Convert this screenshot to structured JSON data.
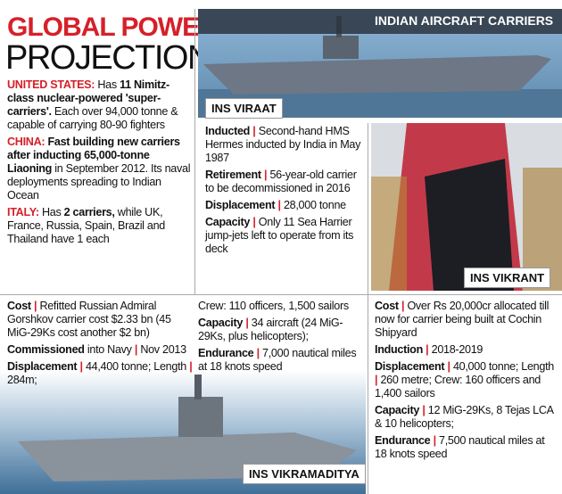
{
  "title": {
    "line1": "GLOBAL POWER",
    "line2": "PROJECTION"
  },
  "banner": "INDIAN AIRCRAFT CARRIERS",
  "left": [
    [
      {
        "red": "UNITED STATES:"
      },
      {
        "plain": "Has"
      },
      {
        "bold": "11 Nimitz-class nuclear-powered 'super-carriers'."
      },
      {
        "plain": "Each over 94,000 tonne & capable of carrying 80-90 fighters"
      }
    ],
    [
      {
        "red": "CHINA:"
      },
      {
        "bold": "Fast building new carriers after inducting 65,000-tonne Liaoning"
      },
      {
        "plain": "in September 2012. Its naval deployments spreading to Indian Ocean"
      }
    ],
    [
      {
        "red": "ITALY:"
      },
      {
        "plain": "Has"
      },
      {
        "bold": "2 carriers,"
      },
      {
        "plain": "while UK, France, Russia, Spain, Brazil and Thailand have 1 each"
      }
    ]
  ],
  "viraat": {
    "caption": "INS VIRAAT",
    "facts": [
      [
        {
          "bold": "Inducted"
        },
        {
          "bar": "|"
        },
        {
          "plain": "Second-hand HMS Hermes inducted by India in May 1987"
        }
      ],
      [
        {
          "bold": "Retirement"
        },
        {
          "bar": "|"
        },
        {
          "plain": "56-year-old carrier to be decommissioned in 2016"
        }
      ],
      [
        {
          "bold": "Displacement"
        },
        {
          "bar": "|"
        },
        {
          "plain": "28,000 tonne"
        }
      ],
      [
        {
          "bold": "Capacity"
        },
        {
          "bar": "|"
        },
        {
          "plain": "Only 11 Sea Harrier jump-jets left to operate from its deck"
        }
      ]
    ]
  },
  "vikramaditya": {
    "caption": "INS VIKRAMADITYA",
    "col1": [
      [
        {
          "bold": "Cost"
        },
        {
          "bar": "|"
        },
        {
          "plain": "Refitted Russian Admiral Gorshkov carrier cost $2.33 bn (45 MiG-29Ks cost another $2 bn)"
        }
      ],
      [
        {
          "bold": "Commissioned"
        },
        {
          "plain": "into Navy"
        },
        {
          "bar": "|"
        },
        {
          "plain": "Nov 2013"
        }
      ],
      [
        {
          "bold": "Displacement"
        },
        {
          "bar": "|"
        },
        {
          "plain": "44,400 tonne; Length"
        },
        {
          "bar": "|"
        },
        {
          "plain": "284m;"
        }
      ]
    ],
    "col2": [
      [
        {
          "plain": "Crew: 110 officers, 1,500 sailors"
        }
      ],
      [
        {
          "bold": "Capacity"
        },
        {
          "bar": "|"
        },
        {
          "plain": "34 aircraft (24 MiG-29Ks, plus helicopters);"
        }
      ],
      [
        {
          "bold": "Endurance"
        },
        {
          "bar": "|"
        },
        {
          "plain": "7,000 nautical miles at 18 knots speed"
        }
      ]
    ]
  },
  "vikrant": {
    "caption": "INS VIKRANT",
    "facts": [
      [
        {
          "bold": "Cost"
        },
        {
          "bar": "|"
        },
        {
          "plain": "Over Rs 20,000cr allocated till now for carrier being built at Cochin Shipyard"
        }
      ],
      [
        {
          "bold": "Induction"
        },
        {
          "bar": "|"
        },
        {
          "plain": "2018-2019"
        }
      ],
      [
        {
          "bold": "Displacement"
        },
        {
          "bar": "|"
        },
        {
          "plain": "40,000 tonne; Length"
        },
        {
          "bar": "|"
        },
        {
          "plain": "260 metre; Crew: 160 officers and 1,400 sailors"
        }
      ],
      [
        {
          "bold": "Capacity"
        },
        {
          "bar": "|"
        },
        {
          "plain": "12 MiG-29Ks, 8 Tejas LCA & 10 helicopters;"
        }
      ],
      [
        {
          "bold": "Endurance"
        },
        {
          "bar": "|"
        },
        {
          "plain": "7,500 nautical miles at 18 knots speed"
        }
      ]
    ]
  }
}
